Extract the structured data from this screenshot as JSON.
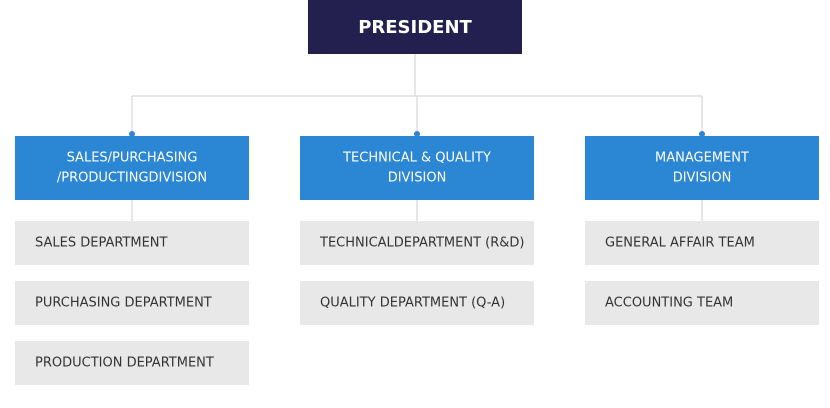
{
  "president": "PRESIDENT",
  "divisions": [
    {
      "title": [
        "SALES/PURCHASING",
        "/PRODUCTINGDIVISION"
      ],
      "departments": [
        "SALES DEPARTMENT",
        "PURCHASING DEPARTMENT",
        "PRODUCTION DEPARTMENT"
      ]
    },
    {
      "title": [
        "TECHNICAL & QUALITY",
        "DIVISION"
      ],
      "departments": [
        "TECHNICALDEPARTMENT (R&D)",
        "QUALITY DEPARTMENT (Q-A)"
      ]
    },
    {
      "title": [
        "MANAGEMENT",
        "DIVISION"
      ],
      "departments": [
        "GENERAL AFFAIR TEAM",
        "ACCOUNTING TEAM"
      ]
    }
  ]
}
